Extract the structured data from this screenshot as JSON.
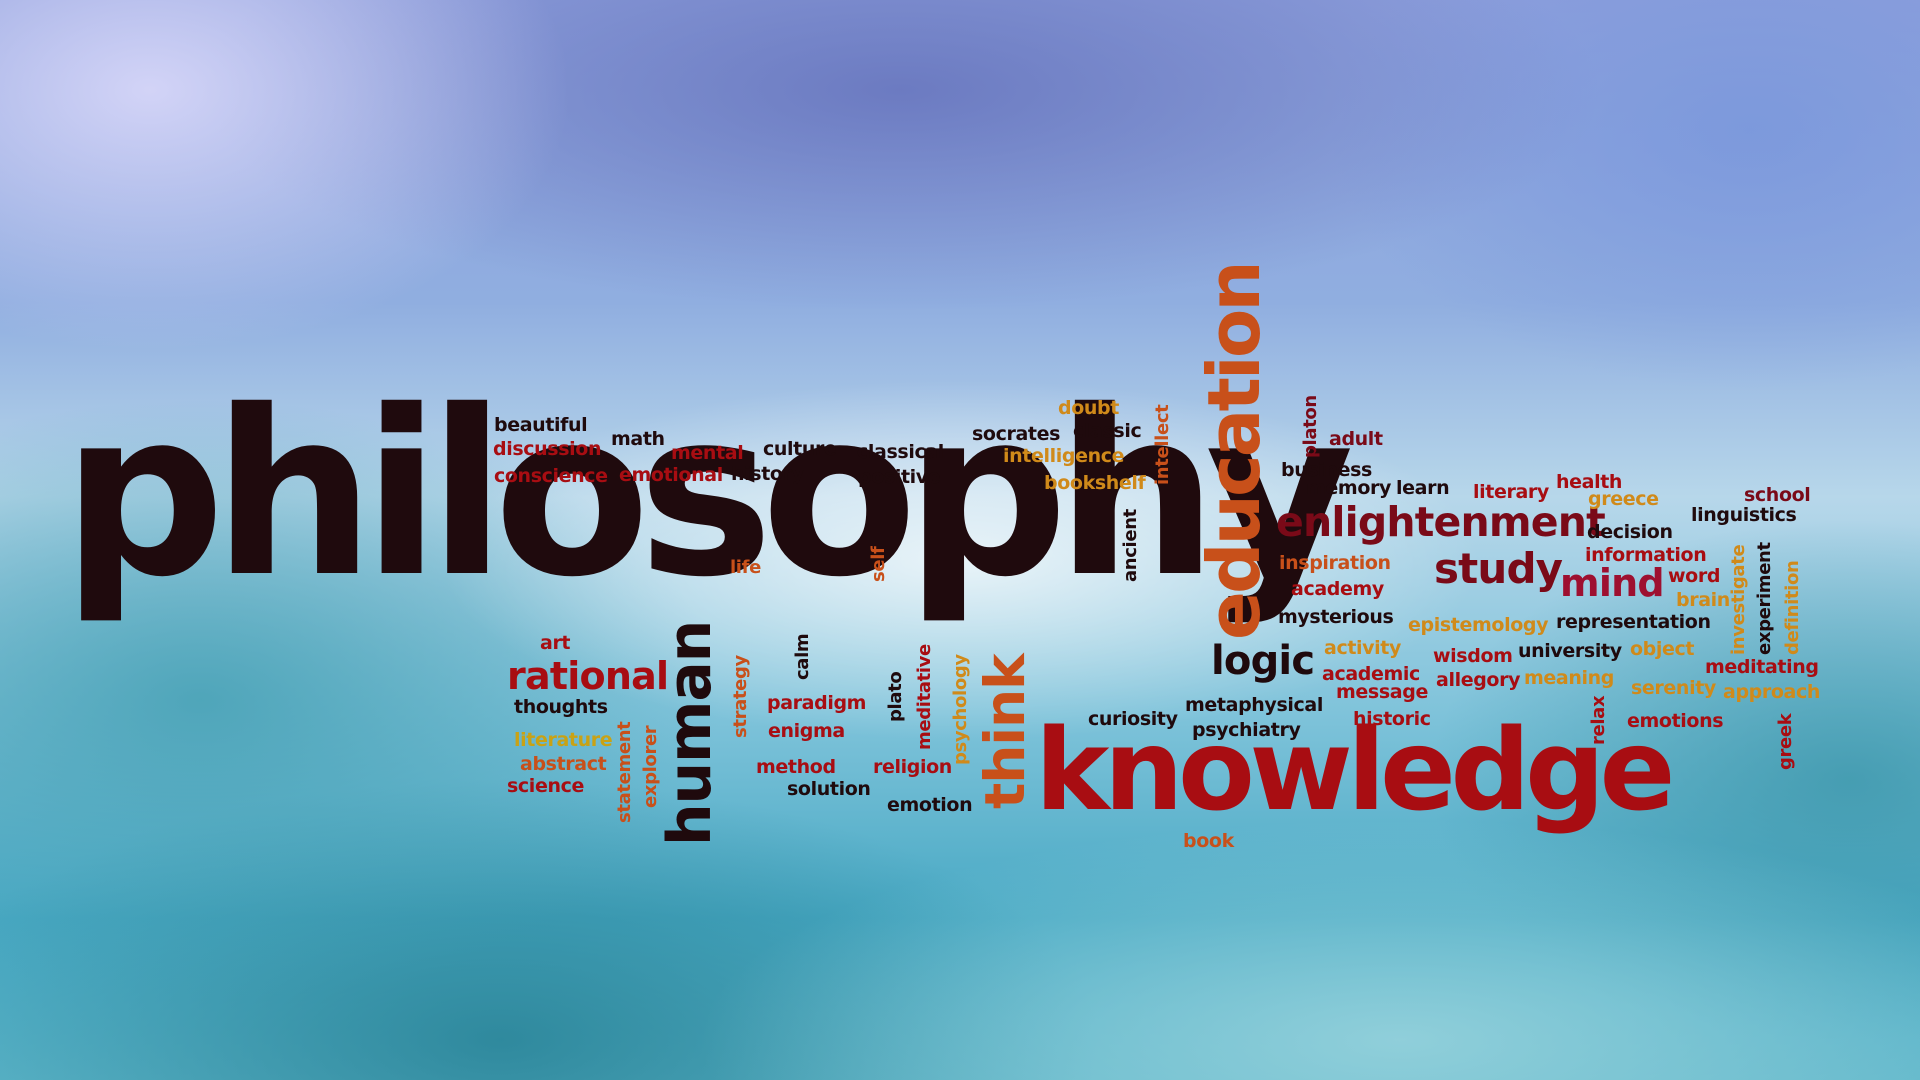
{
  "colors": {
    "black": "#1f0a0d",
    "darkred": "#7a0a18",
    "red": "#a80d12",
    "crimson": "#9e1030",
    "orange": "#c8501a",
    "amber": "#d08a1a",
    "gold": "#c9a214"
  },
  "words": {
    "philosophy": "philosophy",
    "knowledge": "knowledge",
    "education": "education",
    "enlightenment": "enlightenment",
    "study": "study",
    "mind": "mind",
    "logic": "logic",
    "rational": "rational",
    "human": "human",
    "think": "think",
    "beautiful": "beautiful",
    "discussion": "discussion",
    "conscience": "conscience",
    "math": "math",
    "mental": "mental",
    "emotional": "emotional",
    "culture": "culture",
    "history": "history",
    "classical": "classical",
    "positive": "positive",
    "doubt": "doubt",
    "socrates": "socrates",
    "classic": "classic",
    "intelligence": "intelligence",
    "bookshelf": "bookshelf",
    "intellect": "intellect",
    "ancient": "ancient",
    "life": "life",
    "self": "self",
    "platon": "platon",
    "adult": "adult",
    "business": "business",
    "memory": "memory",
    "learn": "learn",
    "literary": "literary",
    "health": "health",
    "greece": "greece",
    "school": "school",
    "linguistics": "linguistics",
    "decision": "decision",
    "information": "information",
    "inspiration": "inspiration",
    "academy": "academy",
    "mysterious": "mysterious",
    "word": "word",
    "brain": "brain",
    "investigate": "investigate",
    "experiment": "experiment",
    "definition": "definition",
    "epistemology": "epistemology",
    "representation": "representation",
    "activity": "activity",
    "wisdom": "wisdom",
    "university": "university",
    "object": "object",
    "meditating": "meditating",
    "academic": "academic",
    "message": "message",
    "allegory": "allegory",
    "meaning": "meaning",
    "serenity": "serenity",
    "approach": "approach",
    "historic": "historic",
    "relax": "relax",
    "emotions": "emotions",
    "greek": "greek",
    "art": "art",
    "thoughts": "thoughts",
    "literature": "literature",
    "abstract": "abstract",
    "science": "science",
    "statement": "statement",
    "explorer": "explorer",
    "strategy": "strategy",
    "calm": "calm",
    "paradigm": "paradigm",
    "enigma": "enigma",
    "method": "method",
    "solution": "solution",
    "plato": "plato",
    "meditative": "meditative",
    "psychology": "psychology",
    "religion": "religion",
    "emotion": "emotion",
    "curiosity": "curiosity",
    "metaphysical": "metaphysical",
    "psychiatry": "psychiatry",
    "book": "book"
  }
}
